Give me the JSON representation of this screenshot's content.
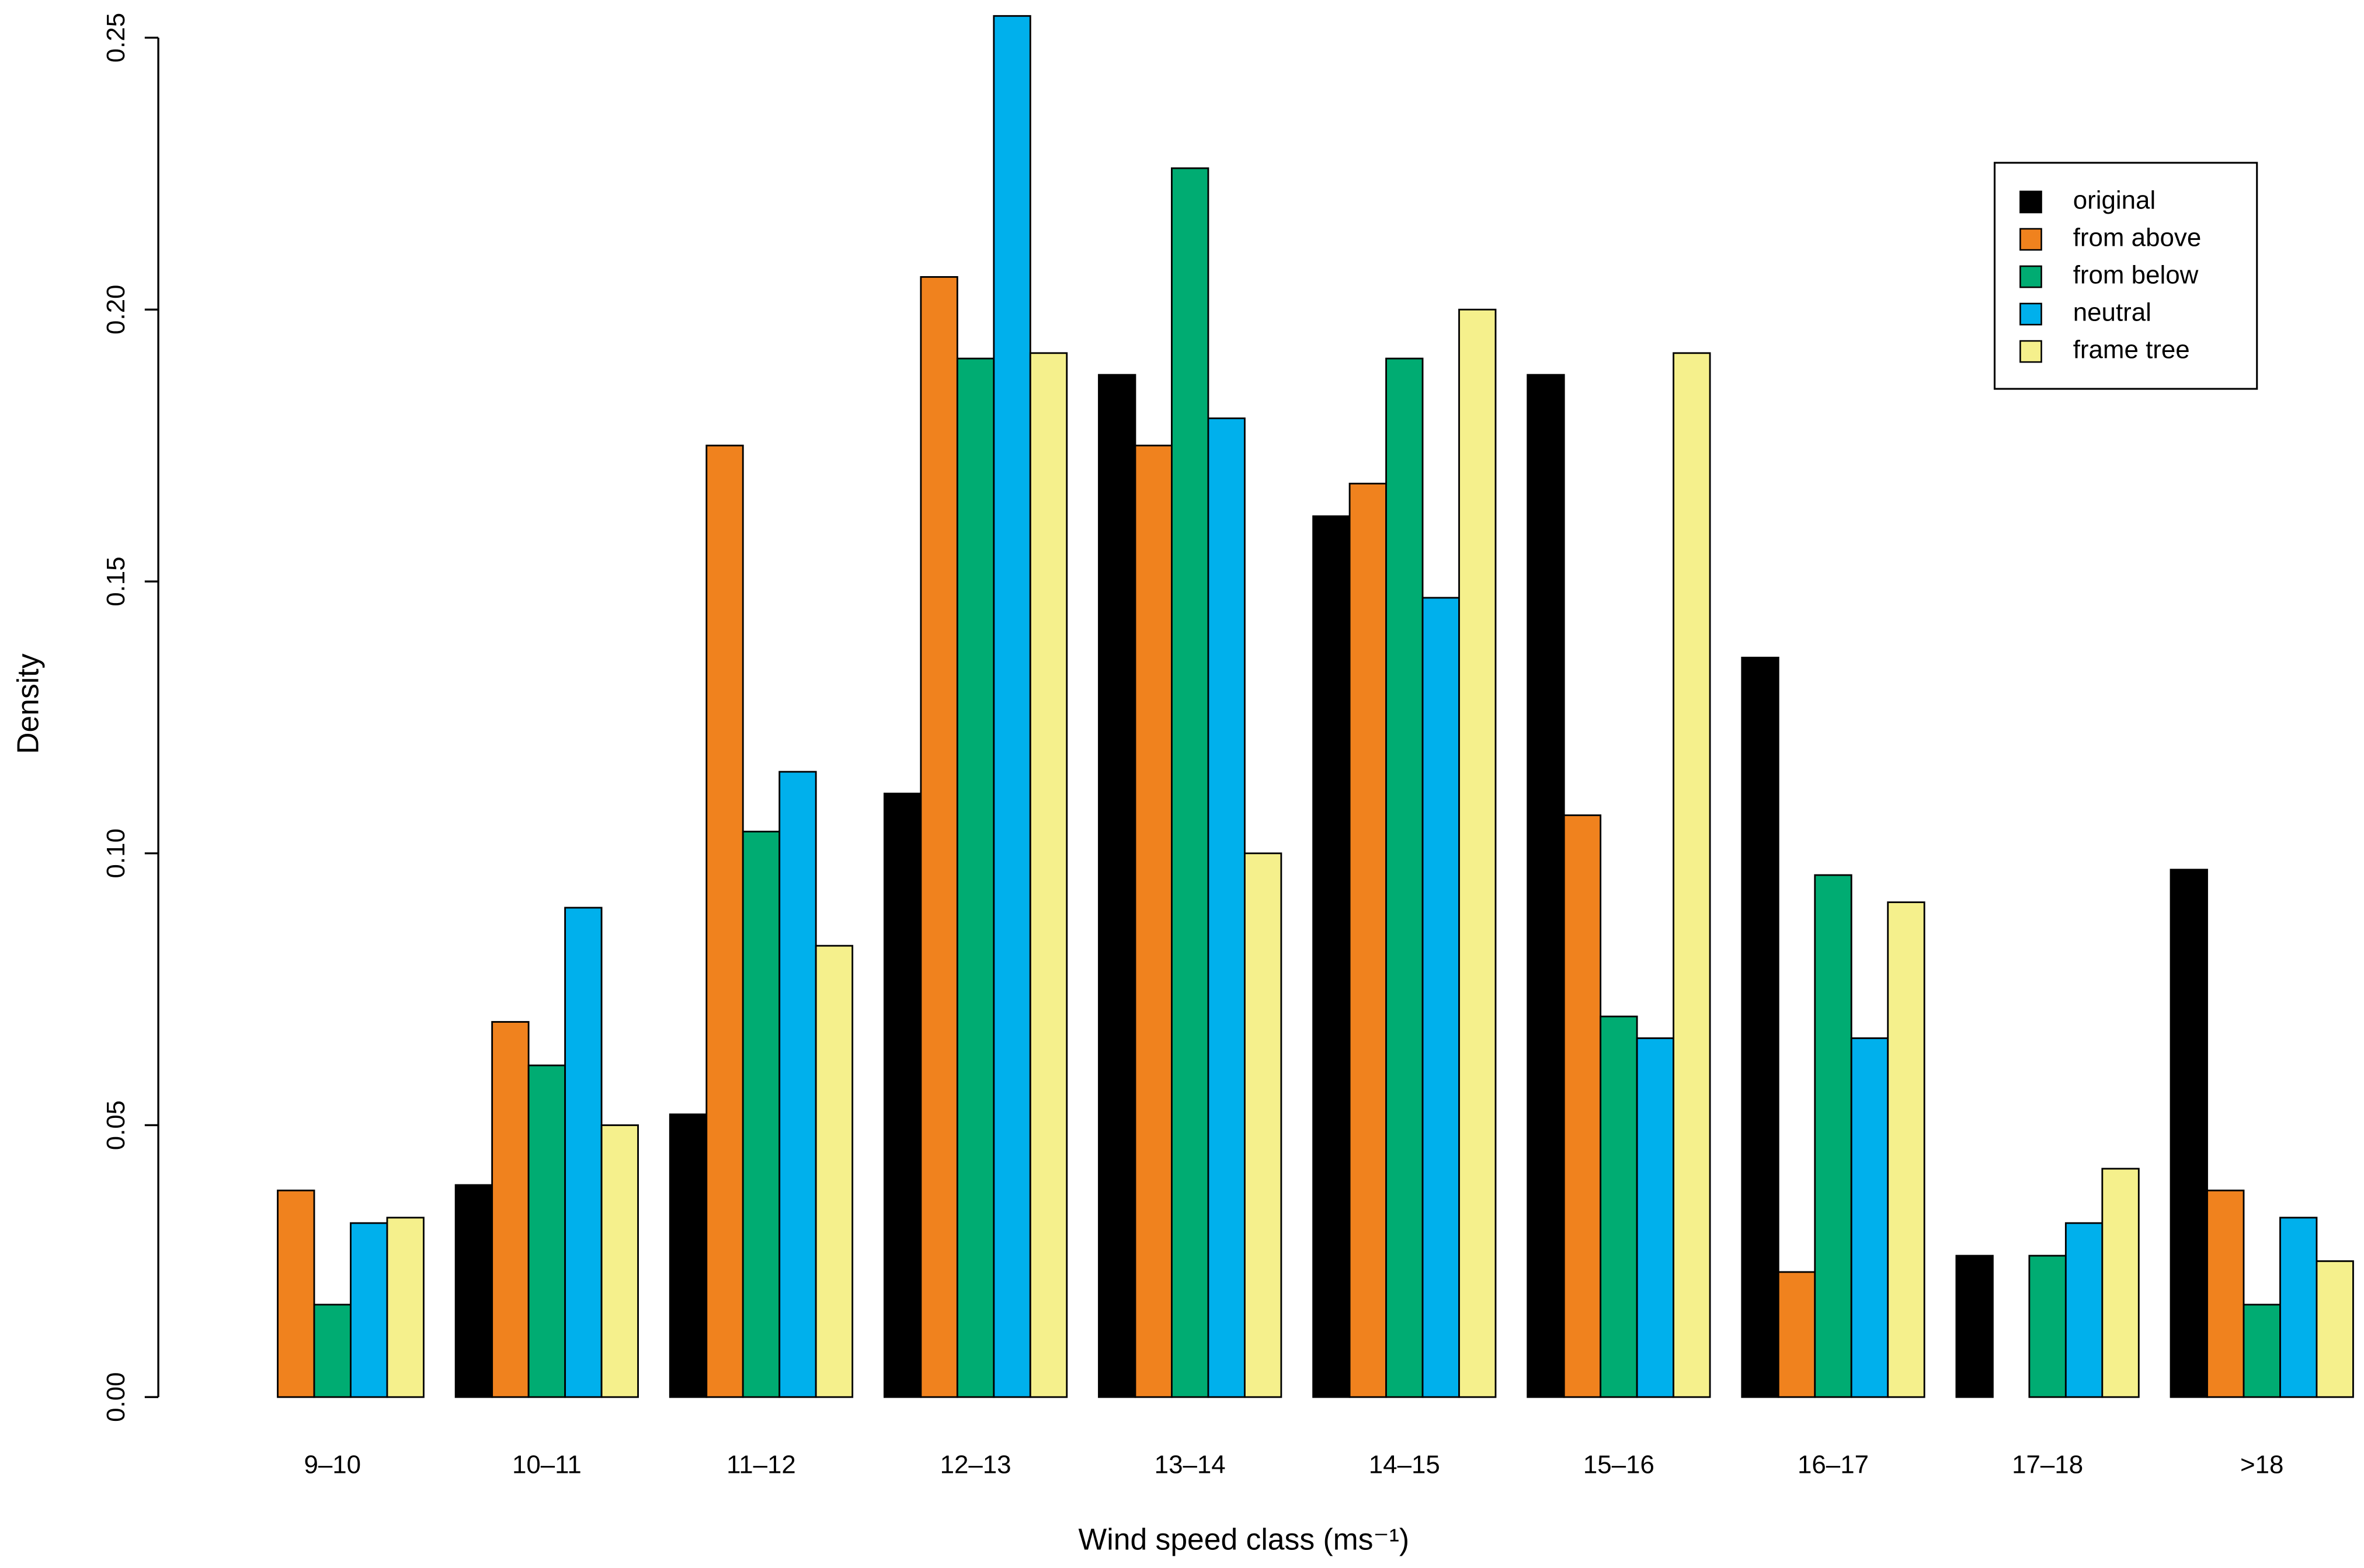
{
  "chart_data": {
    "type": "bar",
    "xlabel": "Wind speed class (ms⁻¹)",
    "ylabel": "Density",
    "categories": [
      "9–10",
      "10–11",
      "11–12",
      "12–13",
      "13–14",
      "14–15",
      "15–16",
      "16–17",
      "17–18",
      ">18"
    ],
    "series": [
      {
        "name": "original",
        "color": "#000000",
        "values": [
          0,
          0.039,
          0.052,
          0.111,
          0.188,
          0.162,
          0.188,
          0.136,
          0.026,
          0.097
        ]
      },
      {
        "name": "from above",
        "color": "#f0821e",
        "values": [
          0.038,
          0.069,
          0.175,
          0.206,
          0.175,
          0.168,
          0.107,
          0.023,
          0,
          0.038
        ]
      },
      {
        "name": "from below",
        "color": "#00ac72",
        "values": [
          0.017,
          0.061,
          0.104,
          0.191,
          0.226,
          0.191,
          0.07,
          0.096,
          0.026,
          0.017
        ]
      },
      {
        "name": "neutral",
        "color": "#00b0ec",
        "values": [
          0.032,
          0.09,
          0.115,
          0.254,
          0.18,
          0.147,
          0.066,
          0.066,
          0.032,
          0.033
        ]
      },
      {
        "name": "frame tree",
        "color": "#f5f08c",
        "values": [
          0.033,
          0.05,
          0.083,
          0.192,
          0.1,
          0.2,
          0.192,
          0.091,
          0.042,
          0.025
        ]
      }
    ],
    "ylim": [
      0,
      0.25
    ],
    "yticks": [
      {
        "value": 0,
        "label": "0.00"
      },
      {
        "value": 0.05,
        "label": "0.05"
      },
      {
        "value": 0.1,
        "label": "0.10"
      },
      {
        "value": 0.15,
        "label": "0.15"
      },
      {
        "value": 0.2,
        "label": "0.20"
      },
      {
        "value": 0.25,
        "label": "0.25"
      }
    ],
    "legend": "top-right"
  }
}
